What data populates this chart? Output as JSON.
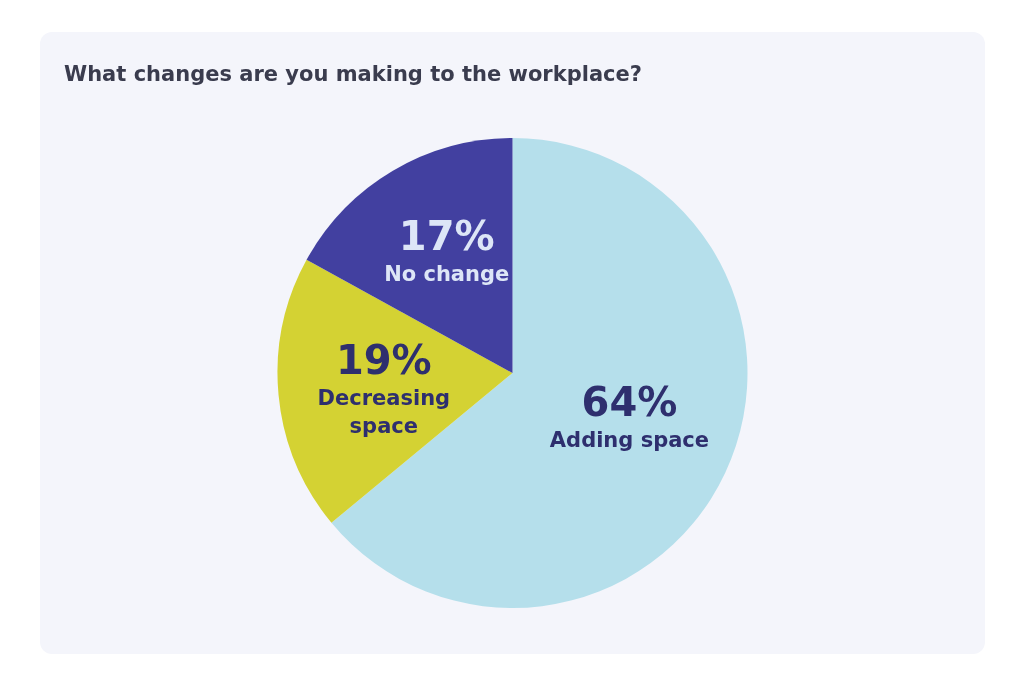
{
  "chart_data": {
    "type": "pie",
    "title": "What changes are you making to the workplace?",
    "categories": [
      "Adding space",
      "Decreasing space",
      "No change"
    ],
    "values": [
      64,
      19,
      17
    ],
    "colors": [
      "#b5dfeb",
      "#d4d233",
      "#4240a0"
    ],
    "value_labels": [
      "64%",
      "19%",
      "17%"
    ],
    "legend": false
  }
}
